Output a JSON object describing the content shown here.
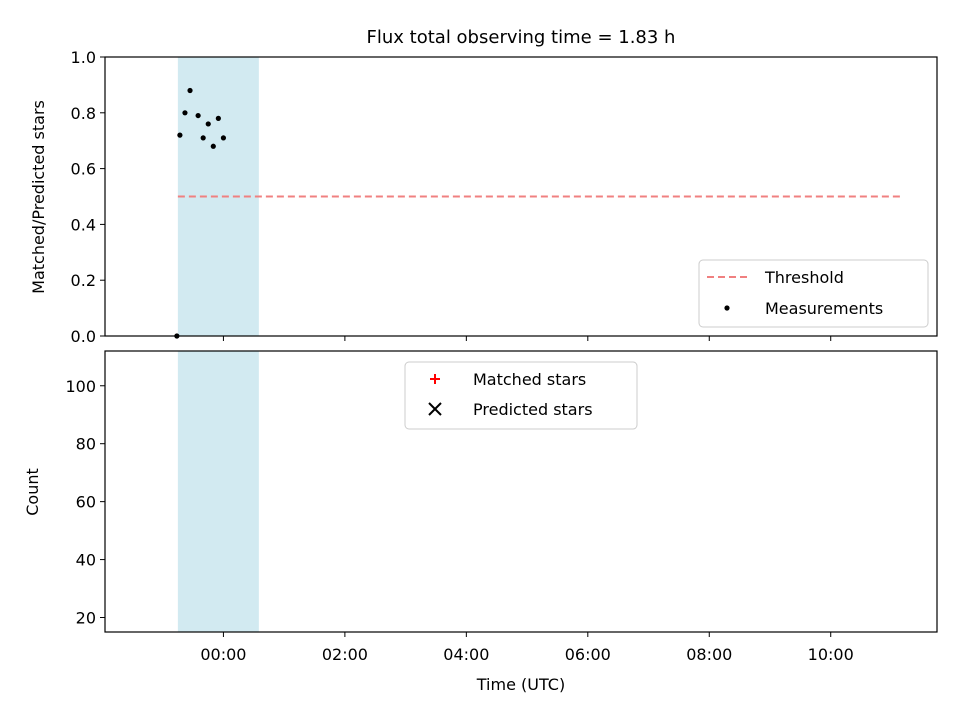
{
  "figure": {
    "title": "Flux total observing time = 1.83 h",
    "xlabel": "Time (UTC)",
    "x_ticks": [
      {
        "hours": 0,
        "label": "00:00"
      },
      {
        "hours": 2,
        "label": "02:00"
      },
      {
        "hours": 4,
        "label": "04:00"
      },
      {
        "hours": 6,
        "label": "06:00"
      },
      {
        "hours": 8,
        "label": "08:00"
      },
      {
        "hours": 10,
        "label": "10:00"
      }
    ]
  },
  "colors": {
    "shade": "#add8e6",
    "threshold": "#f08080",
    "measurements": "#000000",
    "matched": "#ff0000",
    "predicted": "#000000"
  },
  "chart_data": [
    {
      "type": "scatter",
      "panel": "top",
      "ylabel": "Matched/Predicted stars",
      "xlim": [
        "22:05",
        "11:45"
      ],
      "ylim": [
        0.0,
        1.0
      ],
      "y_ticks": [
        "0.0",
        "0.2",
        "0.4",
        "0.6",
        "0.8",
        "1.0"
      ],
      "shaded_interval": [
        "23:15",
        "00:35"
      ],
      "threshold": {
        "label": "Threshold",
        "y": 0.5,
        "x_range": [
          "23:15",
          "11:10"
        ],
        "style": "dashed"
      },
      "legend": {
        "placement": "lower right",
        "entries": [
          "Threshold",
          "Measurements"
        ]
      },
      "series": [
        {
          "name": "Measurements",
          "marker": "dot",
          "points": [
            [
              "23:14",
              0.0
            ],
            [
              "23:17",
              0.72
            ],
            [
              "23:22",
              0.8
            ],
            [
              "23:27",
              0.88
            ],
            [
              "23:35",
              0.79
            ],
            [
              "23:40",
              0.71
            ],
            [
              "23:45",
              0.76
            ],
            [
              "23:50",
              0.68
            ],
            [
              "23:55",
              0.78
            ],
            [
              "00:00",
              0.71
            ],
            [
              "-",
              0.0
            ]
          ]
        }
      ]
    },
    {
      "type": "scatter",
      "panel": "bottom",
      "ylabel": "Count",
      "xlabel": "Time (UTC)",
      "xlim": [
        "22:05",
        "11:45"
      ],
      "ylim": [
        15,
        112
      ],
      "y_ticks": [
        "20",
        "40",
        "60",
        "80",
        "100"
      ],
      "shaded_interval": [
        "23:15",
        "00:35"
      ],
      "legend": {
        "placement": "upper center",
        "entries": [
          "Matched stars",
          "Predicted stars"
        ]
      },
      "series": [
        {
          "name": "Matched stars",
          "marker": "plus"
        },
        {
          "name": "Predicted stars",
          "marker": "x"
        }
      ]
    }
  ]
}
